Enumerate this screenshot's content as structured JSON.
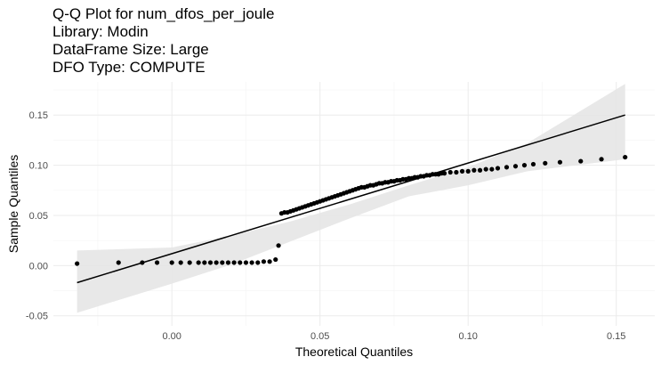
{
  "chart_data": {
    "type": "scatter",
    "title_lines": [
      "Q-Q Plot for num_dfos_per_joule",
      "Library: Modin",
      "DataFrame Size: Large",
      "DFO Type: COMPUTE"
    ],
    "xlabel": "Theoretical Quantiles",
    "ylabel": "Sample Quantiles",
    "xlim": [
      -0.04,
      0.163
    ],
    "ylim": [
      -0.06,
      0.183
    ],
    "x_ticks": [
      0.0,
      0.05,
      0.1,
      0.15
    ],
    "x_tick_labels": [
      "0.00",
      "0.05",
      "0.10",
      "0.15"
    ],
    "y_ticks": [
      -0.05,
      0.0,
      0.05,
      0.1,
      0.15
    ],
    "y_tick_labels": [
      "-0.05",
      "0.00",
      "0.05",
      "0.10",
      "0.15"
    ],
    "grid": true,
    "reference_line": {
      "x": [
        -0.032,
        0.153
      ],
      "y": [
        -0.017,
        0.15
      ]
    },
    "confidence_band": {
      "x": [
        -0.032,
        0.0,
        0.02,
        0.04,
        0.06,
        0.08,
        0.1,
        0.12,
        0.153
      ],
      "lower": [
        -0.047,
        -0.018,
        0.001,
        0.024,
        0.047,
        0.069,
        0.08,
        0.094,
        0.106
      ],
      "upper": [
        0.015,
        0.018,
        0.03,
        0.044,
        0.061,
        0.08,
        0.098,
        0.122,
        0.181
      ]
    },
    "points": {
      "x": [
        -0.032,
        -0.018,
        -0.01,
        -0.005,
        0.0,
        0.003,
        0.006,
        0.009,
        0.011,
        0.013,
        0.015,
        0.017,
        0.019,
        0.021,
        0.023,
        0.025,
        0.027,
        0.029,
        0.031,
        0.033,
        0.035,
        0.036,
        0.037,
        0.038,
        0.039,
        0.04,
        0.041,
        0.042,
        0.043,
        0.044,
        0.045,
        0.046,
        0.047,
        0.048,
        0.049,
        0.05,
        0.051,
        0.052,
        0.053,
        0.054,
        0.055,
        0.056,
        0.057,
        0.058,
        0.059,
        0.06,
        0.061,
        0.062,
        0.063,
        0.064,
        0.065,
        0.066,
        0.067,
        0.068,
        0.069,
        0.07,
        0.071,
        0.072,
        0.073,
        0.074,
        0.075,
        0.076,
        0.077,
        0.078,
        0.079,
        0.08,
        0.081,
        0.082,
        0.083,
        0.084,
        0.085,
        0.086,
        0.087,
        0.088,
        0.089,
        0.09,
        0.091,
        0.092,
        0.094,
        0.096,
        0.098,
        0.1,
        0.102,
        0.104,
        0.106,
        0.108,
        0.11,
        0.113,
        0.116,
        0.119,
        0.122,
        0.126,
        0.131,
        0.138,
        0.145,
        0.153
      ],
      "y": [
        0.002,
        0.003,
        0.003,
        0.003,
        0.003,
        0.003,
        0.003,
        0.003,
        0.003,
        0.003,
        0.003,
        0.003,
        0.003,
        0.003,
        0.003,
        0.003,
        0.003,
        0.003,
        0.004,
        0.004,
        0.006,
        0.02,
        0.052,
        0.053,
        0.053,
        0.054,
        0.055,
        0.056,
        0.057,
        0.058,
        0.059,
        0.06,
        0.061,
        0.062,
        0.063,
        0.064,
        0.065,
        0.066,
        0.067,
        0.068,
        0.069,
        0.07,
        0.071,
        0.072,
        0.073,
        0.074,
        0.075,
        0.076,
        0.077,
        0.078,
        0.078,
        0.079,
        0.08,
        0.08,
        0.081,
        0.082,
        0.082,
        0.083,
        0.083,
        0.084,
        0.084,
        0.085,
        0.085,
        0.086,
        0.086,
        0.087,
        0.087,
        0.088,
        0.088,
        0.089,
        0.089,
        0.09,
        0.09,
        0.091,
        0.091,
        0.091,
        0.092,
        0.092,
        0.093,
        0.093,
        0.094,
        0.094,
        0.095,
        0.095,
        0.096,
        0.096,
        0.097,
        0.098,
        0.099,
        0.1,
        0.101,
        0.102,
        0.103,
        0.104,
        0.106,
        0.108
      ]
    },
    "colors": {
      "panel_bg": "#ffffff",
      "major_grid": "#ebebeb",
      "minor_grid": "#f4f4f4",
      "band": "#e6e6e6",
      "line": "#000000",
      "points": "#000000"
    }
  }
}
